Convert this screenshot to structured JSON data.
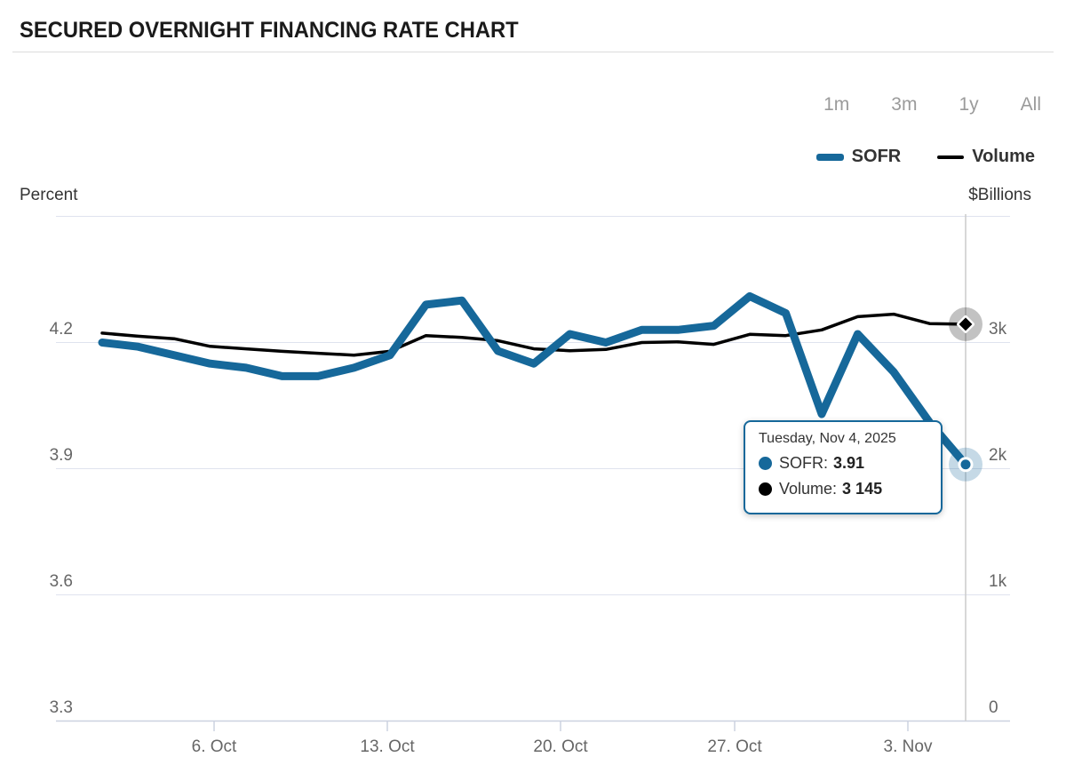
{
  "title": "SECURED OVERNIGHT FINANCING RATE CHART",
  "range_selector": {
    "options": [
      "1m",
      "3m",
      "1y",
      "All"
    ]
  },
  "legend": {
    "items": [
      {
        "label": "SOFR",
        "color": "#16689a"
      },
      {
        "label": "Volume",
        "color": "#000000"
      }
    ]
  },
  "axes": {
    "left_title": "Percent",
    "right_title": "$Billions",
    "left_ticks": [
      "4.2",
      "3.9",
      "3.6",
      "3.3"
    ],
    "right_ticks": [
      "3k",
      "2k",
      "1k",
      "0"
    ],
    "x_ticks": [
      "6. Oct",
      "13. Oct",
      "20. Oct",
      "27. Oct",
      "3. Nov"
    ]
  },
  "tooltip": {
    "date": "Tuesday, Nov 4, 2025",
    "rows": [
      {
        "label": "SOFR:",
        "value": "3.91",
        "marker_color": "#16689a"
      },
      {
        "label": "Volume:",
        "value": "3 145",
        "marker_color": "#000000"
      }
    ]
  },
  "chart_data": {
    "type": "line",
    "title": "SECURED OVERNIGHT FINANCING RATE CHART",
    "x": [
      "Oct 1",
      "Oct 2",
      "Oct 3",
      "Oct 6",
      "Oct 7",
      "Oct 8",
      "Oct 9",
      "Oct 10",
      "Oct 13",
      "Oct 14",
      "Oct 15",
      "Oct 16",
      "Oct 17",
      "Oct 20",
      "Oct 21",
      "Oct 22",
      "Oct 23",
      "Oct 24",
      "Oct 27",
      "Oct 28",
      "Oct 29",
      "Oct 30",
      "Oct 31",
      "Nov 3",
      "Nov 4"
    ],
    "series": [
      {
        "name": "SOFR",
        "axis": "left",
        "unit": "Percent",
        "color": "#16689a",
        "values": [
          4.2,
          4.19,
          4.17,
          4.15,
          4.14,
          4.12,
          4.12,
          4.14,
          4.17,
          4.29,
          4.3,
          4.18,
          4.15,
          4.22,
          4.2,
          4.23,
          4.23,
          4.24,
          4.31,
          4.27,
          4.03,
          4.22,
          4.13,
          4.01,
          3.91
        ]
      },
      {
        "name": "Volume",
        "axis": "right",
        "unit": "$Billions",
        "color": "#000000",
        "values": [
          3075,
          3050,
          3030,
          2970,
          2950,
          2930,
          2915,
          2900,
          2930,
          3055,
          3040,
          3015,
          2950,
          2935,
          2945,
          3000,
          3005,
          2985,
          3065,
          3055,
          3100,
          3205,
          3225,
          3150,
          3145
        ]
      }
    ],
    "left_ylim": [
      3.3,
      4.5
    ],
    "right_ylim": [
      0,
      4000
    ],
    "left_tick_values": [
      4.2,
      3.9,
      3.6,
      3.3
    ],
    "right_tick_values": [
      3000,
      2000,
      1000,
      0
    ],
    "grid": "horizontal",
    "legend_position": "top-right",
    "highlighted_point": {
      "date": "Tuesday, Nov 4, 2025",
      "SOFR": 3.91,
      "Volume": 3145
    }
  }
}
